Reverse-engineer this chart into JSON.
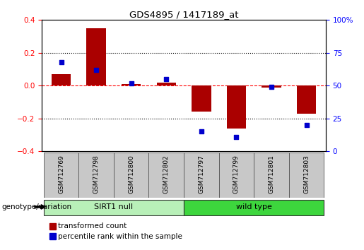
{
  "title": "GDS4895 / 1417189_at",
  "samples": [
    "GSM712769",
    "GSM712798",
    "GSM712800",
    "GSM712802",
    "GSM712797",
    "GSM712799",
    "GSM712801",
    "GSM712803"
  ],
  "transformed_count": [
    0.07,
    0.35,
    0.01,
    0.02,
    -0.16,
    -0.26,
    -0.01,
    -0.17
  ],
  "percentile_rank_raw": [
    68,
    62,
    52,
    55,
    15,
    11,
    49,
    20
  ],
  "groups": [
    {
      "label": "SIRT1 null",
      "start": 0,
      "end": 4,
      "color": "#B8F0B8"
    },
    {
      "label": "wild type",
      "start": 4,
      "end": 8,
      "color": "#3DD63D"
    }
  ],
  "bar_color": "#AA0000",
  "point_color": "#0000CC",
  "ylim_left": [
    -0.4,
    0.4
  ],
  "ylim_right": [
    0,
    100
  ],
  "yticks_left": [
    -0.4,
    -0.2,
    0.0,
    0.2,
    0.4
  ],
  "yticks_right": [
    0,
    25,
    50,
    75,
    100
  ],
  "ytick_labels_right": [
    "0",
    "25",
    "50",
    "75",
    "100%"
  ],
  "hline_y": 0.0,
  "dotted_lines": [
    -0.2,
    0.2
  ],
  "legend_items": [
    {
      "label": "transformed count",
      "color": "#AA0000"
    },
    {
      "label": "percentile rank within the sample",
      "color": "#0000CC"
    }
  ],
  "genotype_label": "genotype/variation",
  "background_color": "#ffffff",
  "bar_width": 0.55,
  "sample_box_color": "#C8C8C8",
  "point_size": 22
}
